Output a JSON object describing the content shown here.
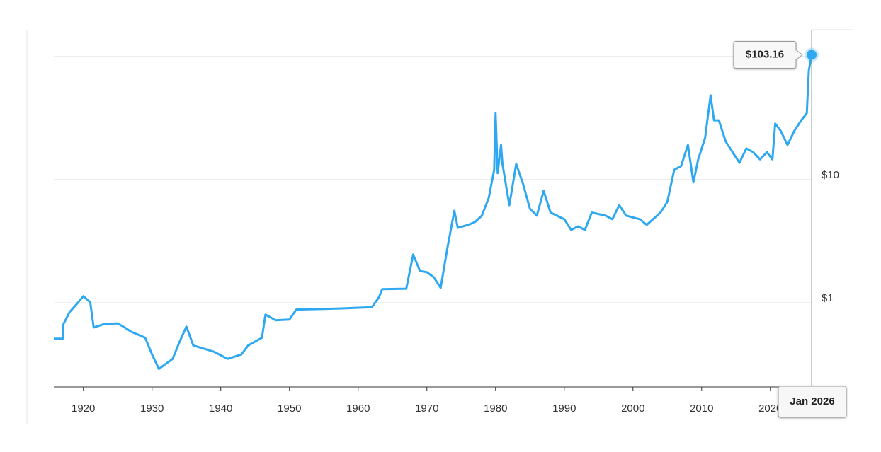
{
  "chart_data": {
    "type": "line",
    "color": "#2ea8f0",
    "log_y": true,
    "grid": true,
    "xlim": [
      1915.7,
      2026.0
    ],
    "ylim": [
      0.207,
      165
    ],
    "xticks": [
      1920,
      1930,
      1940,
      1950,
      1960,
      1970,
      1980,
      1990,
      2000,
      2010,
      2020
    ],
    "yticks": [
      {
        "value": 1,
        "label": "$1"
      },
      {
        "value": 10,
        "label": "$10"
      },
      {
        "value": 100,
        "label": null
      }
    ],
    "x": [
      1915.7,
      1917,
      1917.1,
      1918,
      1919,
      1920,
      1921,
      1921.5,
      1923,
      1925,
      1926,
      1927,
      1929,
      1930,
      1931,
      1933,
      1934,
      1935,
      1936,
      1939,
      1941,
      1943,
      1944,
      1946,
      1946.5,
      1948,
      1950,
      1951,
      1955,
      1958,
      1962,
      1963,
      1963.5,
      1967,
      1968,
      1969,
      1970,
      1971,
      1972,
      1973,
      1974,
      1974.5,
      1976,
      1977,
      1978,
      1979,
      1979.8,
      1980,
      1980.3,
      1980.8,
      1981,
      1982,
      1983,
      1984,
      1985,
      1986,
      1987,
      1988,
      1990,
      1991,
      1992,
      1993,
      1994,
      1996,
      1997,
      1998,
      1999,
      2001,
      2002,
      2004,
      2005,
      2006,
      2007,
      2008,
      2008.8,
      2009.5,
      2010.5,
      2011.3,
      2011.8,
      2012.5,
      2013.5,
      2014.5,
      2015.5,
      2016.5,
      2017.5,
      2018.5,
      2019.5,
      2020.3,
      2020.7,
      2021.5,
      2022.5,
      2023.5,
      2024.5,
      2025.3,
      2025.6,
      2026.0
    ],
    "values": [
      0.51,
      0.51,
      0.67,
      0.84,
      0.97,
      1.13,
      1.01,
      0.63,
      0.67,
      0.68,
      0.63,
      0.58,
      0.52,
      0.38,
      0.29,
      0.35,
      0.48,
      0.64,
      0.45,
      0.4,
      0.35,
      0.38,
      0.45,
      0.52,
      0.8,
      0.72,
      0.73,
      0.88,
      0.89,
      0.9,
      0.92,
      1.1,
      1.29,
      1.3,
      2.46,
      1.81,
      1.77,
      1.61,
      1.32,
      2.81,
      5.59,
      4.06,
      4.29,
      4.52,
      5.09,
      7.1,
      12.0,
      34.6,
      11.3,
      19.1,
      13.4,
      6.2,
      13.4,
      9.2,
      5.8,
      5.1,
      8.1,
      5.4,
      4.77,
      3.9,
      4.17,
      3.9,
      5.4,
      5.1,
      4.77,
      6.2,
      5.1,
      4.77,
      4.29,
      5.4,
      6.6,
      12.0,
      12.9,
      19.1,
      9.5,
      14.6,
      21.8,
      48.3,
      30.3,
      30.3,
      20.4,
      16.7,
      13.7,
      17.9,
      16.7,
      14.6,
      16.7,
      14.6,
      28.5,
      24.9,
      19.1,
      24.9,
      30.3,
      34.6,
      76.9,
      103.16
    ],
    "tooltip": {
      "x": 2026.0,
      "label": "Jan 2026",
      "value": 103.16,
      "value_label": "$103.16"
    }
  }
}
